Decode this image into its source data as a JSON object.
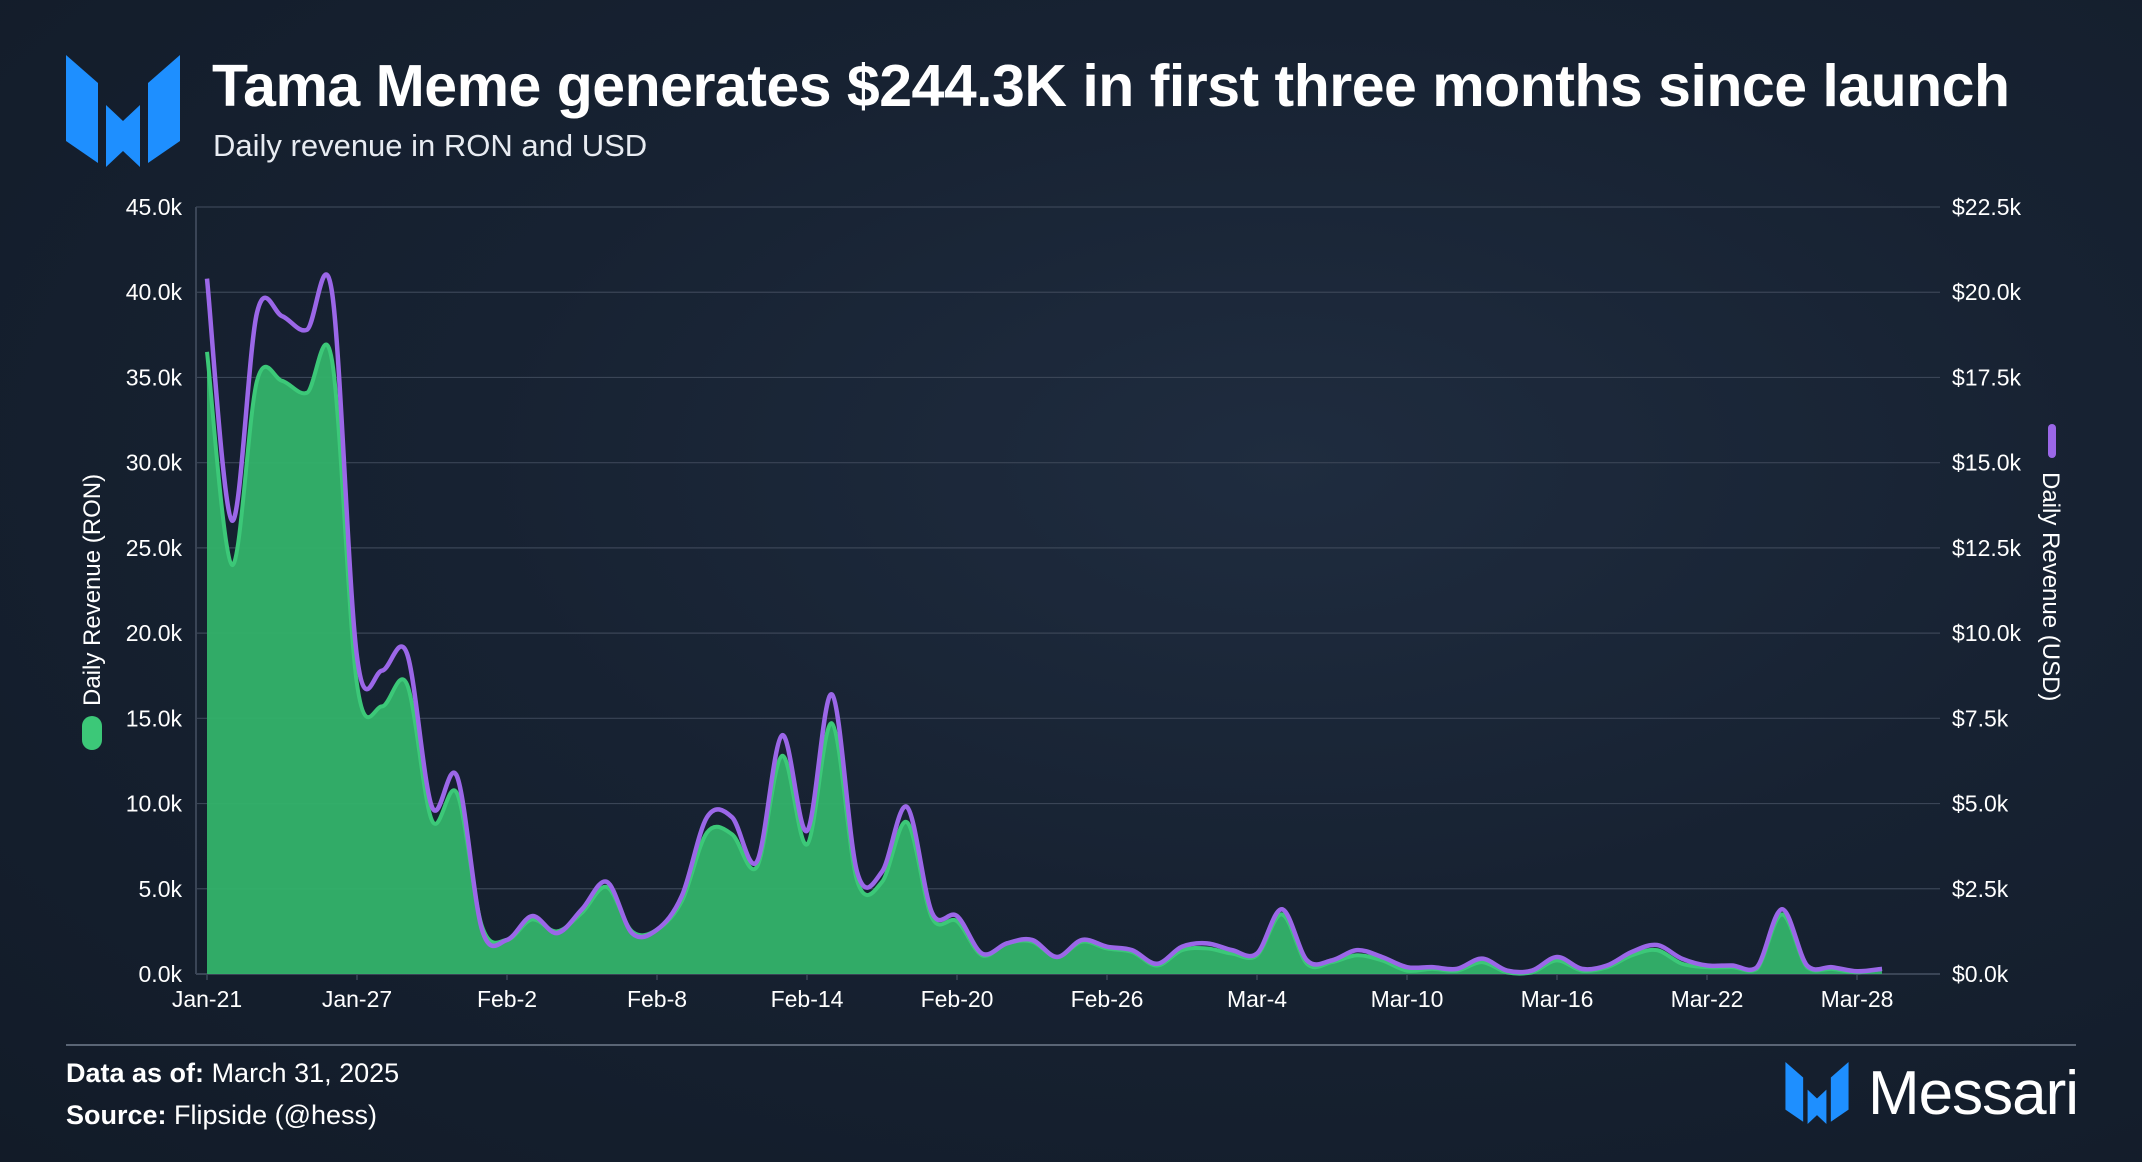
{
  "header": {
    "title": "Tama Meme generates $244.3K in first three months since launch",
    "subtitle": "Daily revenue in RON and USD"
  },
  "footer": {
    "data_as_of_label": "Data as of:",
    "data_as_of_value": "March 31, 2025",
    "source_label": "Source:",
    "source_value": "Flipside (@hess)"
  },
  "brand": {
    "name": "Messari"
  },
  "colors": {
    "ron": "#3cc878",
    "ron_fill": "#33b36a",
    "usd": "#9b67e8",
    "grid": "#3a4556",
    "logo": "#1e8fff"
  },
  "chart_data": {
    "type": "area",
    "x_labels": [
      "Jan-21",
      "Jan-27",
      "Feb-2",
      "Feb-8",
      "Feb-14",
      "Feb-20",
      "Feb-26",
      "Mar-4",
      "Mar-10",
      "Mar-16",
      "Mar-22",
      "Mar-28"
    ],
    "y_left": {
      "label": "Daily Revenue (RON)",
      "ticks": [
        "0.0k",
        "5.0k",
        "10.0k",
        "15.0k",
        "20.0k",
        "25.0k",
        "30.0k",
        "35.0k",
        "40.0k",
        "45.0k"
      ],
      "range": [
        0,
        45000
      ]
    },
    "y_right": {
      "label": "Daily Revenue (USD)",
      "ticks": [
        "$0.0k",
        "$2.5k",
        "$5.0k",
        "$7.5k",
        "$10.0k",
        "$12.5k",
        "$15.0k",
        "$17.5k",
        "$20.0k",
        "$22.5k"
      ],
      "range": [
        0,
        22500
      ]
    },
    "series": [
      {
        "name": "Daily Revenue (RON)",
        "axis": "left",
        "style": "area",
        "values": [
          36500,
          24000,
          34800,
          34800,
          34100,
          36000,
          17000,
          15700,
          17000,
          9000,
          10600,
          2800,
          2000,
          3200,
          2500,
          3600,
          5100,
          2500,
          2600,
          4300,
          8300,
          8200,
          6300,
          12800,
          7600,
          14700,
          5500,
          5400,
          8900,
          3300,
          3100,
          1100,
          1800,
          1900,
          1000,
          1900,
          1500,
          1300,
          500,
          1400,
          1500,
          1200,
          1100,
          3500,
          600,
          700,
          1100,
          800,
          200,
          300,
          200,
          700,
          100,
          100,
          800,
          200,
          400,
          1100,
          1400,
          600,
          400,
          400,
          300,
          3500,
          400,
          300,
          100,
          300
        ]
      },
      {
        "name": "Daily Revenue (USD)",
        "axis": "right",
        "style": "line",
        "values": [
          20400,
          13300,
          19400,
          19300,
          18900,
          20000,
          9300,
          8900,
          9400,
          4900,
          5800,
          1300,
          1000,
          1700,
          1200,
          1900,
          2700,
          1200,
          1300,
          2300,
          4600,
          4600,
          3300,
          7000,
          4200,
          8200,
          3000,
          3000,
          4900,
          1800,
          1700,
          600,
          900,
          1000,
          500,
          1000,
          800,
          700,
          300,
          800,
          900,
          700,
          600,
          1900,
          400,
          400,
          700,
          500,
          200,
          200,
          150,
          450,
          100,
          100,
          500,
          150,
          250,
          650,
          850,
          450,
          250,
          250,
          200,
          1900,
          250,
          200,
          80,
          150
        ]
      }
    ],
    "grid": true
  }
}
